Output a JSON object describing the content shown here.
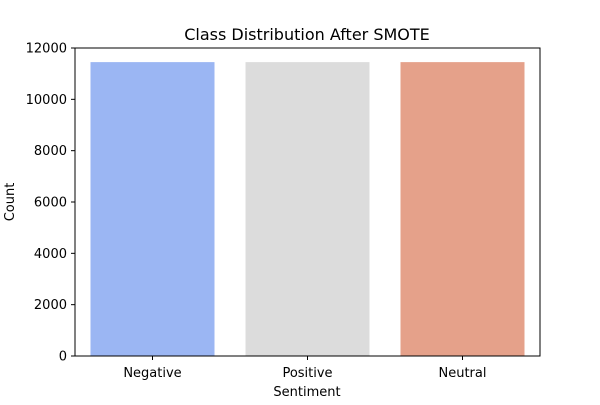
{
  "chart_data": {
    "type": "bar",
    "title": "Class Distribution After SMOTE",
    "xlabel": "Sentiment",
    "ylabel": "Count",
    "categories": [
      "Negative",
      "Positive",
      "Neutral"
    ],
    "values": [
      11450,
      11450,
      11450
    ],
    "colors": [
      "#9bb6f3",
      "#dcdcdc",
      "#e5a18a"
    ],
    "ylim": [
      0,
      12000
    ],
    "yticks": [
      0,
      2000,
      4000,
      6000,
      8000,
      10000,
      12000
    ],
    "grid": false,
    "legend": "none"
  }
}
